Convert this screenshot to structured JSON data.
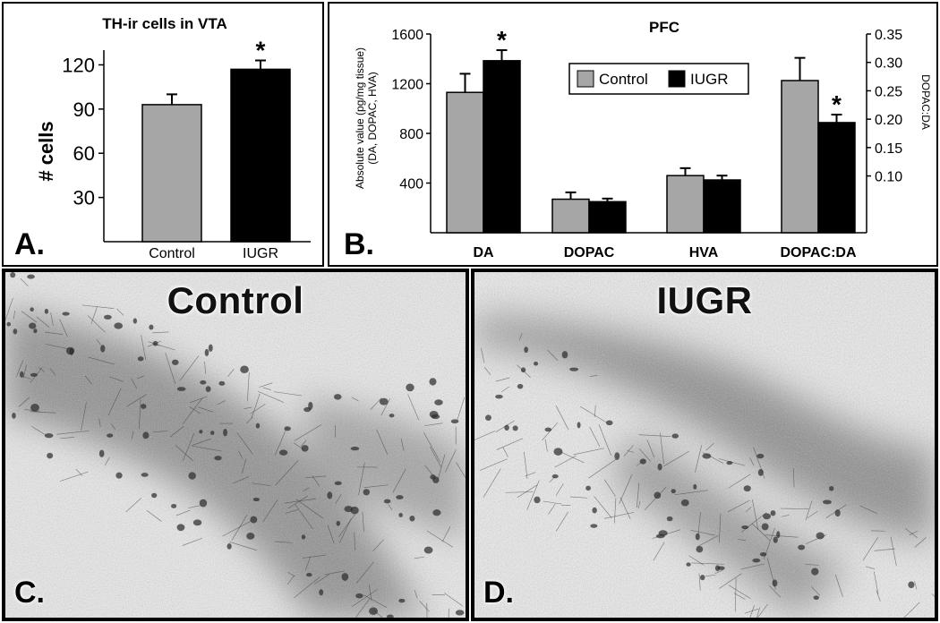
{
  "chart_data": [
    {
      "panel_label": "A.",
      "type": "bar",
      "title": "TH-ir cells in VTA",
      "ylabel": "# cells",
      "categories": [
        "Control",
        "IUGR"
      ],
      "values": [
        93,
        117
      ],
      "errors": [
        7,
        6
      ],
      "colors": [
        "#a6a6a6",
        "#000000"
      ],
      "significance": [
        "",
        "*"
      ],
      "ylim": [
        0,
        130
      ],
      "yticks": [
        30,
        60,
        90,
        120
      ],
      "grid": false
    },
    {
      "panel_label": "B.",
      "type": "bar",
      "title": "PFC",
      "ylabel_left": "Absolute value (pg/mg tissue)",
      "ylabel_left_sub": "(DA, DOPAC, HVA)",
      "ylabel_right": "DOPAC:DA",
      "categories": [
        "DA",
        "DOPAC",
        "HVA",
        "DOPAC:DA"
      ],
      "series": [
        {
          "name": "Control",
          "color": "#a6a6a6",
          "values": [
            1130,
            270,
            460,
            0.268
          ],
          "errors": [
            150,
            55,
            60,
            0.04
          ]
        },
        {
          "name": "IUGR",
          "color": "#000000",
          "values": [
            1385,
            250,
            425,
            0.194
          ],
          "errors": [
            85,
            25,
            35,
            0.014
          ]
        }
      ],
      "significance": [
        [
          "",
          "*"
        ],
        [
          "",
          ""
        ],
        [
          "",
          ""
        ],
        [
          "",
          "*"
        ]
      ],
      "yaxis_left": {
        "range": [
          0,
          1600
        ],
        "ticks": [
          400,
          800,
          1200,
          1600
        ],
        "applies_to": [
          "DA",
          "DOPAC",
          "HVA"
        ]
      },
      "yaxis_right": {
        "range": [
          0,
          0.35
        ],
        "ticks": [
          "0.10",
          "0.15",
          "0.20",
          "0.25",
          "0.30",
          "0.35"
        ],
        "applies_to": [
          "DOPAC:DA"
        ]
      },
      "legend_position": "top-center",
      "grid": false
    }
  ],
  "images": [
    {
      "panel_label": "C.",
      "title": "Control"
    },
    {
      "panel_label": "D.",
      "title": "IUGR"
    }
  ]
}
